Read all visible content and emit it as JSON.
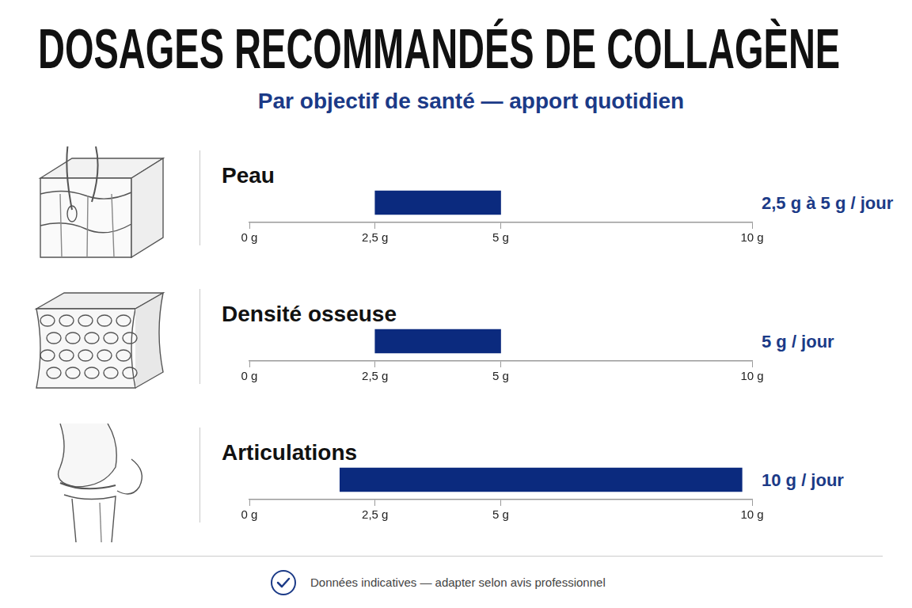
{
  "title": "DOSAGES RECOMMANDÉS DE COLLAGÈNE",
  "subtitle": "Par objectif de santé — apport quotidien",
  "footer": "Données indicatives — adapter selon avis professionnel",
  "chart_data": [
    {
      "type": "bar",
      "orientation": "horizontal",
      "title": "Peau",
      "values": [
        [
          2.5,
          5
        ]
      ],
      "color": "#0b2a7e",
      "annotation": "2,5 g à 5 g / jour",
      "xlim": [
        0,
        10
      ],
      "xticks": [
        {
          "value": 0,
          "label": "0 g"
        },
        {
          "value": 2.5,
          "label": "2,5 g"
        },
        {
          "value": 5,
          "label": "5 g"
        },
        {
          "value": 10,
          "label": "10 g"
        }
      ],
      "grid": false
    },
    {
      "type": "bar",
      "orientation": "horizontal",
      "title": "Densité osseuse",
      "values": [
        [
          2.5,
          5
        ]
      ],
      "color": "#0b2a7e",
      "annotation": "5 g / jour",
      "xlim": [
        0,
        10
      ],
      "xticks": [
        {
          "value": 0,
          "label": "0 g"
        },
        {
          "value": 2.5,
          "label": "2,5 g"
        },
        {
          "value": 5,
          "label": "5 g"
        },
        {
          "value": 10,
          "label": "10 g"
        }
      ],
      "grid": false
    },
    {
      "type": "bar",
      "orientation": "horizontal",
      "title": "Articulations",
      "values": [
        [
          1.8,
          9.8
        ]
      ],
      "color": "#0b2a7e",
      "annotation": "10 g / jour",
      "xlim": [
        0,
        10
      ],
      "xticks": [
        {
          "value": 0,
          "label": "0 g"
        },
        {
          "value": 2.5,
          "label": "2,5 g"
        },
        {
          "value": 5,
          "label": "5 g"
        },
        {
          "value": 10,
          "label": "10 g"
        }
      ],
      "grid": false
    }
  ]
}
